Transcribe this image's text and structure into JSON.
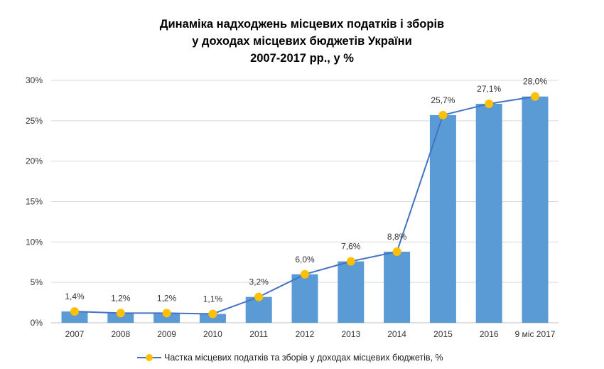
{
  "chart_data": {
    "type": "bar+line",
    "title": [
      "Динаміка надходжень місцевих податків і зборів",
      "у доходах місцевих бюджетів України",
      "2007-2017 рр., у %"
    ],
    "categories": [
      "2007",
      "2008",
      "2009",
      "2010",
      "2011",
      "2012",
      "2013",
      "2014",
      "2015",
      "2016",
      "9 міс 2017"
    ],
    "series": [
      {
        "name": "Частка місцевих податків та зборів у доходах місцевих бюджетів, %",
        "values": [
          1.4,
          1.2,
          1.2,
          1.1,
          3.2,
          6.0,
          7.6,
          8.8,
          25.7,
          27.1,
          28.0
        ]
      }
    ],
    "data_labels": [
      "1,4%",
      "1,2%",
      "1,2%",
      "1,1%",
      "3,2%",
      "6,0%",
      "7,6%",
      "8,8%",
      "25,7%",
      "27,1%",
      "28,0%"
    ],
    "yticks": [
      "0%",
      "5%",
      "10%",
      "15%",
      "20%",
      "25%",
      "30%"
    ],
    "ylim": [
      0,
      30
    ],
    "grid": true,
    "legend": "bottom",
    "colors": {
      "bar": "#5b9bd5",
      "line": "#4472c4",
      "marker": "#ffc000",
      "grid": "#d9d9d9"
    }
  }
}
